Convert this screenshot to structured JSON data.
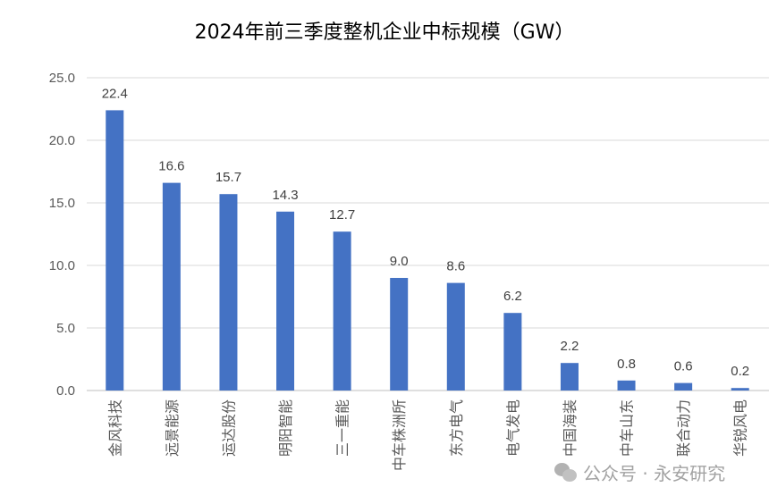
{
  "chart_data": {
    "type": "bar",
    "title": "2024年前三季度整机企业中标规模（GW）",
    "categories": [
      "金风科技",
      "远景能源",
      "运达股份",
      "明阳智能",
      "三一重能",
      "中车株洲所",
      "东方电气",
      "电气发电",
      "中国海装",
      "中车山东",
      "联合动力",
      "华锐风电"
    ],
    "values": [
      22.4,
      16.6,
      15.7,
      14.3,
      12.7,
      9.0,
      8.6,
      6.2,
      2.2,
      0.8,
      0.6,
      0.2
    ],
    "ylim": [
      0,
      25
    ],
    "yticks": [
      "0.0",
      "5.0",
      "10.0",
      "15.0",
      "20.0",
      "25.0"
    ],
    "grid": true,
    "bar_color": "#4472C4",
    "data_labels": true
  },
  "watermark": {
    "text": "公众号 · 永安研究",
    "icon": "wechat-icon"
  }
}
